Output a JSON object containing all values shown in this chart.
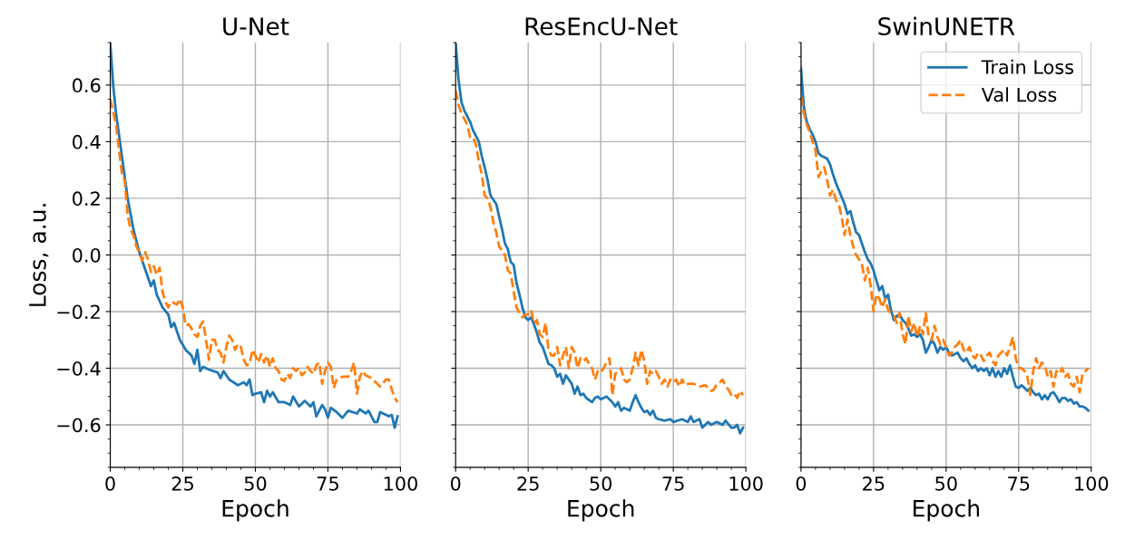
{
  "chart_data": [
    {
      "type": "line",
      "title": "U-Net",
      "xlabel": "Epoch",
      "ylabel": "Loss, a.u.",
      "xlim": [
        0,
        100
      ],
      "xticks": [
        0,
        25,
        50,
        75,
        100
      ],
      "ylim": [
        -0.75,
        0.75
      ],
      "yticks": [
        {
          "value": -0.6,
          "label": "−0.6"
        },
        {
          "value": -0.4,
          "label": "−0.4"
        },
        {
          "value": -0.2,
          "label": "−0.2"
        },
        {
          "value": 0,
          "label": "0.0"
        },
        {
          "value": 0.2,
          "label": "0.2"
        },
        {
          "value": 0.4,
          "label": "0.4"
        },
        {
          "value": 0.6,
          "label": "0.6"
        }
      ],
      "grid": true,
      "legend": false,
      "series": [
        {
          "color": "#1f77b4",
          "line_style": "solid",
          "x": [
            0,
            1,
            2,
            4,
            6,
            8,
            10,
            12,
            14,
            15,
            16,
            18,
            20,
            21,
            22,
            24,
            26,
            28,
            29,
            30,
            31,
            32,
            34,
            37,
            38,
            39,
            41,
            44,
            46,
            47,
            48,
            49,
            50,
            52,
            53,
            54,
            55,
            56,
            58,
            60,
            62,
            63,
            65,
            67,
            69,
            70,
            71,
            73,
            74,
            75,
            76,
            78,
            80,
            82,
            85,
            86,
            88,
            89,
            91,
            92,
            93,
            96,
            97,
            98,
            99
          ],
          "values": [
            0.75,
            0.6,
            0.5,
            0.35,
            0.2,
            0.09,
            0.01,
            -0.05,
            -0.11,
            -0.09,
            -0.14,
            -0.185,
            -0.21,
            -0.255,
            -0.24,
            -0.3,
            -0.335,
            -0.355,
            -0.385,
            -0.335,
            -0.41,
            -0.395,
            -0.405,
            -0.415,
            -0.435,
            -0.41,
            -0.44,
            -0.46,
            -0.45,
            -0.46,
            -0.44,
            -0.495,
            -0.49,
            -0.485,
            -0.52,
            -0.48,
            -0.5,
            -0.485,
            -0.52,
            -0.52,
            -0.53,
            -0.5,
            -0.535,
            -0.515,
            -0.535,
            -0.52,
            -0.57,
            -0.53,
            -0.545,
            -0.575,
            -0.54,
            -0.555,
            -0.575,
            -0.55,
            -0.56,
            -0.545,
            -0.56,
            -0.55,
            -0.59,
            -0.59,
            -0.555,
            -0.57,
            -0.565,
            -0.61,
            -0.57
          ]
        },
        {
          "color": "#ff7f0e",
          "line_style": "dashed",
          "x": [
            0,
            2,
            3,
            4,
            5,
            6,
            7,
            8,
            9,
            10,
            11,
            12,
            13,
            14,
            15,
            16,
            17,
            18,
            19,
            20,
            21,
            23,
            24,
            25,
            26,
            27,
            28,
            29,
            30,
            31,
            32,
            33,
            34,
            35,
            36,
            37,
            38,
            39,
            40,
            41,
            42,
            43,
            44,
            45,
            46,
            47,
            48,
            49,
            50,
            51,
            52,
            53,
            54,
            55,
            56,
            57,
            58,
            59,
            60,
            61,
            62,
            63,
            64,
            65,
            66,
            67,
            68,
            69,
            70,
            71,
            72,
            73,
            74,
            75,
            76,
            77,
            78,
            79,
            80,
            82,
            83,
            84,
            85,
            86,
            87,
            88,
            89,
            90,
            92,
            93,
            95,
            96,
            97,
            98,
            99
          ],
          "values": [
            0.55,
            0.46,
            0.37,
            0.29,
            0.26,
            0.14,
            0.09,
            0.07,
            0.03,
            0.01,
            -0.02,
            0.01,
            -0.015,
            -0.06,
            -0.04,
            -0.07,
            -0.045,
            -0.13,
            -0.165,
            -0.185,
            -0.165,
            -0.175,
            -0.155,
            -0.185,
            -0.25,
            -0.245,
            -0.26,
            -0.28,
            -0.29,
            -0.25,
            -0.235,
            -0.3,
            -0.37,
            -0.3,
            -0.3,
            -0.335,
            -0.345,
            -0.38,
            -0.325,
            -0.285,
            -0.3,
            -0.335,
            -0.315,
            -0.325,
            -0.37,
            -0.39,
            -0.385,
            -0.335,
            -0.355,
            -0.38,
            -0.35,
            -0.38,
            -0.355,
            -0.395,
            -0.365,
            -0.4,
            -0.41,
            -0.44,
            -0.445,
            -0.42,
            -0.435,
            -0.4,
            -0.41,
            -0.4,
            -0.425,
            -0.415,
            -0.395,
            -0.41,
            -0.42,
            -0.39,
            -0.38,
            -0.455,
            -0.41,
            -0.38,
            -0.395,
            -0.47,
            -0.44,
            -0.435,
            -0.43,
            -0.43,
            -0.41,
            -0.38,
            -0.49,
            -0.43,
            -0.41,
            -0.425,
            -0.43,
            -0.435,
            -0.455,
            -0.465,
            -0.44,
            -0.44,
            -0.475,
            -0.505,
            -0.52
          ]
        }
      ]
    },
    {
      "type": "line",
      "title": "ResEncU-Net",
      "xlabel": "Epoch",
      "xlim": [
        0,
        100
      ],
      "xticks": [
        0,
        25,
        50,
        75,
        100
      ],
      "ylim": [
        -0.75,
        0.75
      ],
      "yticks": [
        {
          "value": -0.6,
          "label": null
        },
        {
          "value": -0.4,
          "label": null
        },
        {
          "value": -0.2,
          "label": null
        },
        {
          "value": 0,
          "label": null
        },
        {
          "value": 0.2,
          "label": null
        },
        {
          "value": 0.4,
          "label": null
        },
        {
          "value": 0.6,
          "label": null
        }
      ],
      "tick_labels": "x",
      "grid": true,
      "legend": false,
      "series": [
        {
          "color": "#1f77b4",
          "line_style": "solid",
          "x": [
            0,
            1,
            2,
            3,
            5,
            6,
            7,
            8,
            9,
            10,
            11,
            12,
            13,
            14,
            15,
            16,
            17,
            18,
            19,
            20,
            21,
            22,
            23,
            24,
            25,
            26,
            27,
            28,
            29,
            30,
            31,
            32,
            33,
            34,
            35,
            36,
            37,
            38,
            39,
            40,
            41,
            42,
            43,
            44,
            45,
            47,
            48,
            49,
            50,
            52,
            54,
            55,
            56,
            57,
            58,
            60,
            61,
            62,
            63,
            64,
            65,
            66,
            67,
            68,
            69,
            70,
            72,
            74,
            75,
            78,
            80,
            81,
            82,
            84,
            85,
            87,
            88,
            90,
            92,
            93,
            95,
            96,
            97,
            98,
            99
          ],
          "values": [
            0.75,
            0.62,
            0.54,
            0.51,
            0.47,
            0.44,
            0.42,
            0.4,
            0.35,
            0.31,
            0.265,
            0.21,
            0.195,
            0.18,
            0.135,
            0.09,
            0.04,
            0.02,
            -0.025,
            -0.035,
            -0.1,
            -0.14,
            -0.185,
            -0.22,
            -0.23,
            -0.22,
            -0.245,
            -0.275,
            -0.31,
            -0.325,
            -0.355,
            -0.385,
            -0.39,
            -0.4,
            -0.43,
            -0.42,
            -0.455,
            -0.425,
            -0.44,
            -0.455,
            -0.49,
            -0.465,
            -0.495,
            -0.49,
            -0.505,
            -0.52,
            -0.505,
            -0.5,
            -0.51,
            -0.5,
            -0.52,
            -0.535,
            -0.52,
            -0.55,
            -0.54,
            -0.55,
            -0.52,
            -0.495,
            -0.52,
            -0.54,
            -0.555,
            -0.55,
            -0.565,
            -0.55,
            -0.575,
            -0.58,
            -0.585,
            -0.58,
            -0.59,
            -0.58,
            -0.59,
            -0.57,
            -0.59,
            -0.58,
            -0.61,
            -0.59,
            -0.6,
            -0.59,
            -0.6,
            -0.585,
            -0.61,
            -0.61,
            -0.6,
            -0.63,
            -0.61
          ]
        },
        {
          "color": "#ff7f0e",
          "line_style": "dashed",
          "x": [
            0,
            1,
            2,
            3,
            4,
            5,
            6,
            7,
            8,
            9,
            10,
            11,
            12,
            13,
            14,
            15,
            16,
            17,
            18,
            19,
            20,
            21,
            22,
            23,
            24,
            25,
            26,
            27,
            28,
            29,
            30,
            31,
            32,
            33,
            34,
            35,
            36,
            37,
            38,
            39,
            40,
            41,
            42,
            43,
            44,
            45,
            46,
            47,
            48,
            49,
            50,
            51,
            52,
            53,
            54,
            55,
            56,
            57,
            58,
            59,
            60,
            61,
            62,
            63,
            64,
            65,
            66,
            67,
            68,
            69,
            70,
            71,
            72,
            73,
            74,
            75,
            76,
            77,
            78,
            79,
            80,
            82,
            84,
            86,
            88,
            89,
            90,
            91,
            92,
            93,
            94,
            95,
            96,
            97,
            98,
            99
          ],
          "values": [
            0.58,
            0.53,
            0.5,
            0.48,
            0.46,
            0.415,
            0.415,
            0.39,
            0.33,
            0.285,
            0.21,
            0.2,
            0.17,
            0.115,
            0.08,
            0.03,
            0.015,
            0.0,
            -0.055,
            -0.065,
            -0.13,
            -0.185,
            -0.205,
            -0.22,
            -0.21,
            -0.21,
            -0.195,
            -0.24,
            -0.23,
            -0.28,
            -0.29,
            -0.24,
            -0.335,
            -0.355,
            -0.355,
            -0.325,
            -0.39,
            -0.355,
            -0.325,
            -0.4,
            -0.325,
            -0.345,
            -0.4,
            -0.365,
            -0.375,
            -0.365,
            -0.385,
            -0.4,
            -0.44,
            -0.41,
            -0.415,
            -0.4,
            -0.38,
            -0.365,
            -0.495,
            -0.42,
            -0.41,
            -0.4,
            -0.44,
            -0.45,
            -0.44,
            -0.4,
            -0.345,
            -0.39,
            -0.335,
            -0.375,
            -0.455,
            -0.41,
            -0.42,
            -0.41,
            -0.43,
            -0.455,
            -0.44,
            -0.465,
            -0.44,
            -0.45,
            -0.44,
            -0.465,
            -0.44,
            -0.46,
            -0.455,
            -0.455,
            -0.465,
            -0.46,
            -0.48,
            -0.475,
            -0.455,
            -0.45,
            -0.44,
            -0.465,
            -0.475,
            -0.495,
            -0.49,
            -0.505,
            -0.48,
            -0.495
          ]
        }
      ]
    },
    {
      "type": "line",
      "title": "SwinUNETR",
      "xlabel": "Epoch",
      "xlim": [
        0,
        100
      ],
      "xticks": [
        0,
        25,
        50,
        75,
        100
      ],
      "ylim": [
        -0.75,
        0.75
      ],
      "yticks": [
        {
          "value": -0.6,
          "label": null
        },
        {
          "value": -0.4,
          "label": null
        },
        {
          "value": -0.2,
          "label": null
        },
        {
          "value": 0,
          "label": null
        },
        {
          "value": 0.2,
          "label": null
        },
        {
          "value": 0.4,
          "label": null
        },
        {
          "value": 0.6,
          "label": null
        }
      ],
      "tick_labels": "x",
      "grid": true,
      "legend": "top right",
      "series": [
        {
          "name": "Train Loss",
          "color": "#1f77b4",
          "line_style": "solid",
          "x": [
            0,
            1,
            2,
            3,
            4,
            5,
            6,
            7,
            8,
            9,
            10,
            11,
            12,
            13,
            14,
            15,
            16,
            17,
            18,
            19,
            20,
            21,
            22,
            23,
            24,
            25,
            26,
            27,
            28,
            29,
            30,
            31,
            32,
            33,
            34,
            35,
            36,
            37,
            38,
            39,
            40,
            41,
            42,
            43,
            44,
            45,
            46,
            47,
            48,
            49,
            50,
            51,
            52,
            54,
            55,
            56,
            57,
            58,
            59,
            60,
            61,
            62,
            63,
            64,
            65,
            66,
            67,
            68,
            69,
            70,
            71,
            72,
            73,
            74,
            75,
            76,
            77,
            78,
            79,
            80,
            81,
            82,
            83,
            84,
            85,
            86,
            87,
            88,
            89,
            90,
            91,
            92,
            93,
            94,
            95,
            96,
            97,
            98,
            99
          ],
          "values": [
            0.66,
            0.52,
            0.47,
            0.445,
            0.425,
            0.4,
            0.36,
            0.35,
            0.345,
            0.34,
            0.32,
            0.285,
            0.255,
            0.23,
            0.205,
            0.18,
            0.145,
            0.155,
            0.115,
            0.08,
            0.07,
            0.04,
            0.01,
            -0.015,
            -0.03,
            -0.055,
            -0.09,
            -0.125,
            -0.11,
            -0.155,
            -0.14,
            -0.195,
            -0.23,
            -0.215,
            -0.21,
            -0.23,
            -0.24,
            -0.26,
            -0.285,
            -0.28,
            -0.29,
            -0.28,
            -0.3,
            -0.345,
            -0.325,
            -0.3,
            -0.315,
            -0.345,
            -0.325,
            -0.335,
            -0.325,
            -0.345,
            -0.355,
            -0.345,
            -0.365,
            -0.375,
            -0.365,
            -0.385,
            -0.4,
            -0.39,
            -0.41,
            -0.4,
            -0.41,
            -0.4,
            -0.425,
            -0.4,
            -0.43,
            -0.41,
            -0.43,
            -0.4,
            -0.42,
            -0.39,
            -0.43,
            -0.465,
            -0.47,
            -0.46,
            -0.47,
            -0.48,
            -0.47,
            -0.485,
            -0.495,
            -0.49,
            -0.51,
            -0.495,
            -0.51,
            -0.49,
            -0.485,
            -0.5,
            -0.52,
            -0.505,
            -0.505,
            -0.515,
            -0.51,
            -0.525,
            -0.52,
            -0.535,
            -0.535,
            -0.54,
            -0.55
          ]
        },
        {
          "name": "Val Loss",
          "color": "#ff7f0e",
          "line_style": "dashed",
          "x": [
            0,
            1,
            2,
            3,
            4,
            5,
            6,
            7,
            8,
            9,
            10,
            11,
            12,
            13,
            14,
            15,
            16,
            17,
            18,
            19,
            20,
            21,
            22,
            23,
            24,
            25,
            26,
            27,
            28,
            29,
            30,
            31,
            32,
            33,
            34,
            35,
            36,
            37,
            38,
            39,
            40,
            41,
            42,
            43,
            44,
            45,
            46,
            47,
            48,
            49,
            50,
            51,
            52,
            53,
            54,
            55,
            56,
            57,
            58,
            59,
            60,
            61,
            62,
            63,
            64,
            65,
            66,
            67,
            68,
            69,
            70,
            71,
            72,
            73,
            74,
            75,
            76,
            77,
            78,
            79,
            80,
            81,
            82,
            83,
            84,
            85,
            86,
            87,
            88,
            89,
            90,
            91,
            92,
            93,
            94,
            95,
            96,
            97,
            98,
            99
          ],
          "values": [
            0.56,
            0.5,
            0.46,
            0.435,
            0.4,
            0.37,
            0.275,
            0.295,
            0.31,
            0.265,
            0.21,
            0.23,
            0.195,
            0.18,
            0.135,
            0.07,
            0.125,
            0.07,
            0.03,
            0.0,
            -0.015,
            -0.035,
            -0.09,
            -0.045,
            -0.11,
            -0.2,
            -0.14,
            -0.155,
            -0.185,
            -0.155,
            -0.195,
            -0.205,
            -0.215,
            -0.24,
            -0.205,
            -0.28,
            -0.315,
            -0.215,
            -0.27,
            -0.24,
            -0.29,
            -0.25,
            -0.28,
            -0.205,
            -0.29,
            -0.3,
            -0.25,
            -0.29,
            -0.315,
            -0.3,
            -0.325,
            -0.355,
            -0.345,
            -0.325,
            -0.315,
            -0.3,
            -0.335,
            -0.345,
            -0.325,
            -0.355,
            -0.365,
            -0.345,
            -0.355,
            -0.375,
            -0.355,
            -0.345,
            -0.375,
            -0.39,
            -0.355,
            -0.345,
            -0.335,
            -0.355,
            -0.325,
            -0.29,
            -0.365,
            -0.4,
            -0.4,
            -0.41,
            -0.43,
            -0.495,
            -0.41,
            -0.365,
            -0.4,
            -0.38,
            -0.39,
            -0.43,
            -0.41,
            -0.465,
            -0.41,
            -0.42,
            -0.4,
            -0.43,
            -0.42,
            -0.455,
            -0.465,
            -0.43,
            -0.485,
            -0.42,
            -0.41,
            -0.4
          ]
        }
      ]
    }
  ]
}
